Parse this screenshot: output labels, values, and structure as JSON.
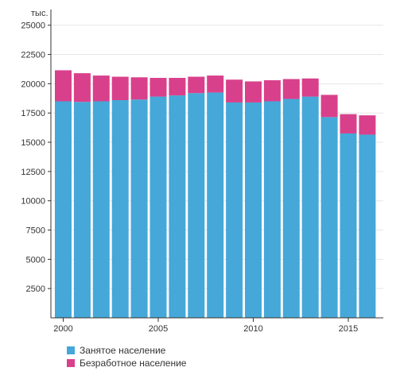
{
  "chart_data": {
    "type": "bar",
    "stacked": true,
    "unit_label": "тыс.",
    "x": [
      2000,
      2001,
      2002,
      2003,
      2004,
      2005,
      2006,
      2007,
      2008,
      2009,
      2010,
      2011,
      2012,
      2013,
      2014,
      2015,
      2016
    ],
    "x_tick_labels": [
      "2000",
      "2005",
      "2010",
      "2015"
    ],
    "y_ticks": [
      2500,
      5000,
      7500,
      10000,
      12500,
      15000,
      17500,
      20000,
      22500,
      25000
    ],
    "ylim": [
      0,
      26000
    ],
    "grid": true,
    "legend_position": "bottom-left",
    "series": [
      {
        "name": "Занятое население",
        "color": "#45a8d8",
        "values": [
          18500,
          18450,
          18500,
          18600,
          18650,
          18900,
          19000,
          19200,
          19250,
          18400,
          18400,
          18500,
          18700,
          18900,
          17150,
          15750,
          15650
        ]
      },
      {
        "name": "Безработное население",
        "color": "#d9408b",
        "values": [
          2650,
          2450,
          2200,
          2000,
          1900,
          1600,
          1500,
          1400,
          1450,
          1950,
          1800,
          1800,
          1700,
          1550,
          1900,
          1650,
          1650
        ]
      }
    ]
  }
}
